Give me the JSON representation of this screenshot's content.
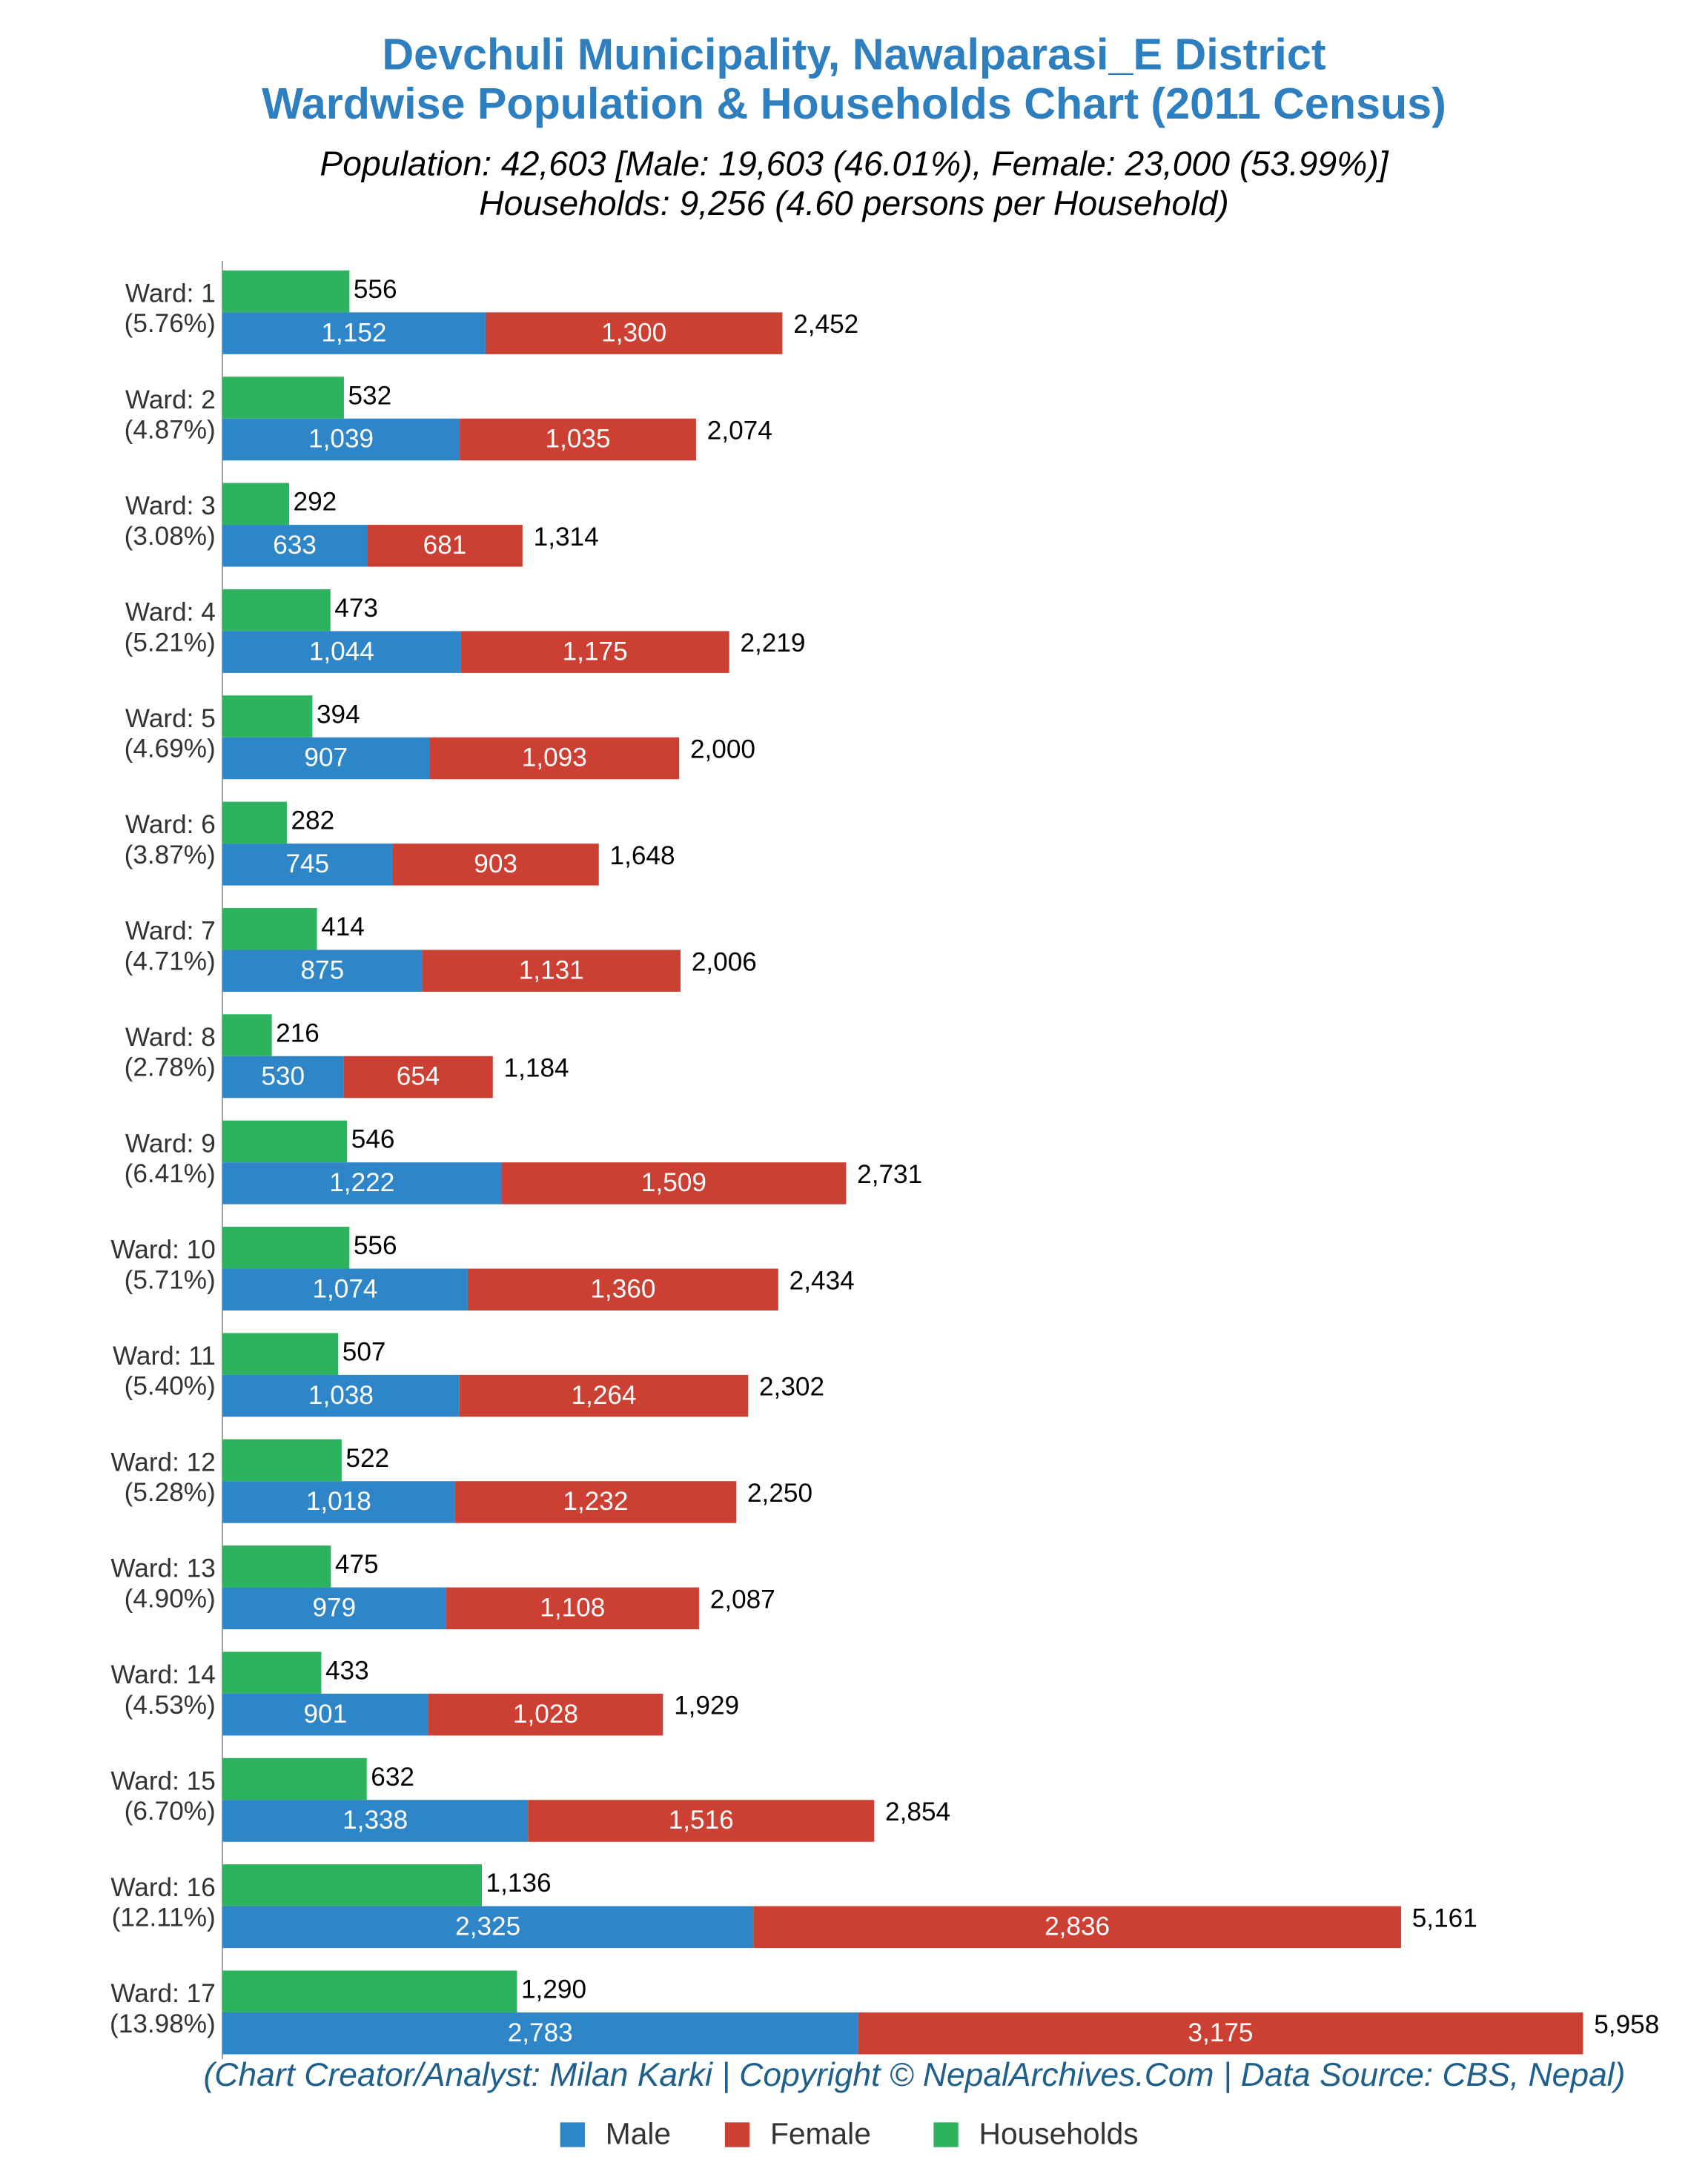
{
  "chart_data": {
    "type": "bar",
    "orientation": "horizontal",
    "title": [
      "Devchuli Municipality, Nawalparasi_E District",
      "Wardwise Population & Households Chart (2011 Census)"
    ],
    "subtitle": [
      "Population: 42,603 [Male: 19,603 (46.01%), Female: 23,000 (53.99%)]",
      "Households: 9,256 (4.60 persons per Household)"
    ],
    "footer": "(Chart Creator/Analyst: Milan Karki | Copyright © NepalArchives.Com | Data Source: CBS, Nepal)",
    "categories": [
      "Ward: 1",
      "Ward: 2",
      "Ward: 3",
      "Ward: 4",
      "Ward: 5",
      "Ward: 6",
      "Ward: 7",
      "Ward: 8",
      "Ward: 9",
      "Ward: 10",
      "Ward: 11",
      "Ward: 12",
      "Ward: 13",
      "Ward: 14",
      "Ward: 15",
      "Ward: 16",
      "Ward: 17"
    ],
    "category_shares": [
      "(5.76%)",
      "(4.87%)",
      "(3.08%)",
      "(5.21%)",
      "(4.69%)",
      "(3.87%)",
      "(4.71%)",
      "(2.78%)",
      "(6.41%)",
      "(5.71%)",
      "(5.40%)",
      "(5.28%)",
      "(4.90%)",
      "(4.53%)",
      "(6.70%)",
      "(12.11%)",
      "(13.98%)"
    ],
    "series": [
      {
        "name": "Male",
        "color": "#2e86c8",
        "values": [
          1152,
          1039,
          633,
          1044,
          907,
          745,
          875,
          530,
          1222,
          1074,
          1038,
          1018,
          979,
          901,
          1338,
          2325,
          2783
        ],
        "value_labels": [
          "1,152",
          "1,039",
          "633",
          "1,044",
          "907",
          "745",
          "875",
          "530",
          "1,222",
          "1,074",
          "1,038",
          "1,018",
          "979",
          "901",
          "1,338",
          "2,325",
          "2,783"
        ]
      },
      {
        "name": "Female",
        "color": "#cc4033",
        "values": [
          1300,
          1035,
          681,
          1175,
          1093,
          903,
          1131,
          654,
          1509,
          1360,
          1264,
          1232,
          1108,
          1028,
          1516,
          2836,
          3175
        ],
        "value_labels": [
          "1,300",
          "1,035",
          "681",
          "1,175",
          "1,093",
          "903",
          "1,131",
          "654",
          "1,509",
          "1,360",
          "1,264",
          "1,232",
          "1,108",
          "1,028",
          "1,516",
          "2,836",
          "3,175"
        ]
      },
      {
        "name": "Households",
        "color": "#2db35d",
        "values": [
          556,
          532,
          292,
          473,
          394,
          282,
          414,
          216,
          546,
          556,
          507,
          522,
          475,
          433,
          632,
          1136,
          1290
        ],
        "value_labels": [
          "556",
          "532",
          "292",
          "473",
          "394",
          "282",
          "414",
          "216",
          "546",
          "556",
          "507",
          "522",
          "475",
          "433",
          "632",
          "1,136",
          "1,290"
        ]
      }
    ],
    "totals": [
      2452,
      2074,
      1314,
      2219,
      2000,
      1648,
      2006,
      1184,
      2731,
      2434,
      2302,
      2250,
      2087,
      1929,
      2854,
      5161,
      5958
    ],
    "total_labels": [
      "2,452",
      "2,074",
      "1,314",
      "2,219",
      "2,000",
      "1,648",
      "2,006",
      "1,184",
      "2,731",
      "2,434",
      "2,302",
      "2,250",
      "2,087",
      "1,929",
      "2,854",
      "5,161",
      "5,958"
    ]
  }
}
